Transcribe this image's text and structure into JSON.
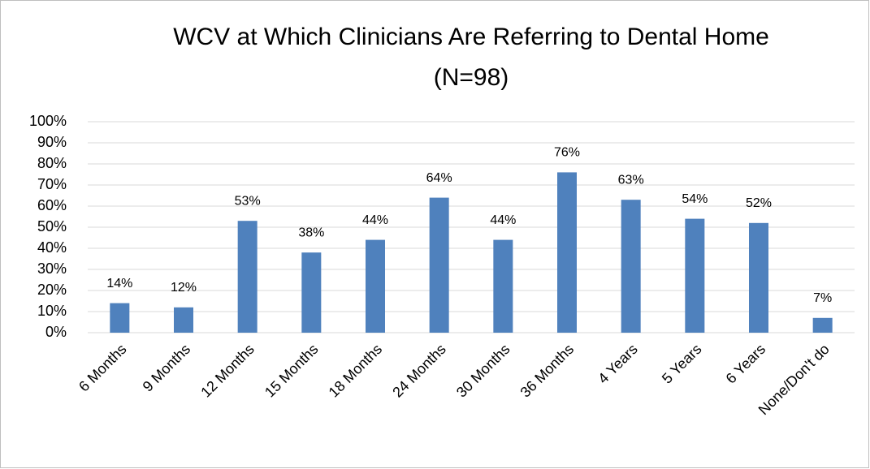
{
  "chart_data": {
    "type": "bar",
    "title": [
      "WCV at Which Clinicians Are Referring to Dental Home",
      "(N=98)"
    ],
    "categories": [
      "6 Months",
      "9 Months",
      "12 Months",
      "15 Months",
      "18 Months",
      "24 Months",
      "30 Months",
      "36 Months",
      "4 Years",
      "5 Years",
      "6 Years",
      "None/Don't do"
    ],
    "values": [
      14,
      12,
      53,
      38,
      44,
      64,
      44,
      76,
      63,
      54,
      52,
      7
    ],
    "value_labels": [
      "14%",
      "12%",
      "53%",
      "38%",
      "44%",
      "64%",
      "44%",
      "76%",
      "63%",
      "54%",
      "52%",
      "7%"
    ],
    "color": "#4f81bd",
    "ylim": [
      0,
      100
    ],
    "yticks": [
      {
        "value": 0,
        "label": "0%"
      },
      {
        "value": 10,
        "label": "10%"
      },
      {
        "value": 20,
        "label": "20%"
      },
      {
        "value": 30,
        "label": "30%"
      },
      {
        "value": 40,
        "label": "40%"
      },
      {
        "value": 50,
        "label": "50%"
      },
      {
        "value": 60,
        "label": "60%"
      },
      {
        "value": 70,
        "label": "70%"
      },
      {
        "value": 80,
        "label": "80%"
      },
      {
        "value": 90,
        "label": "90%"
      },
      {
        "value": 100,
        "label": "100%"
      }
    ],
    "grid": true
  }
}
